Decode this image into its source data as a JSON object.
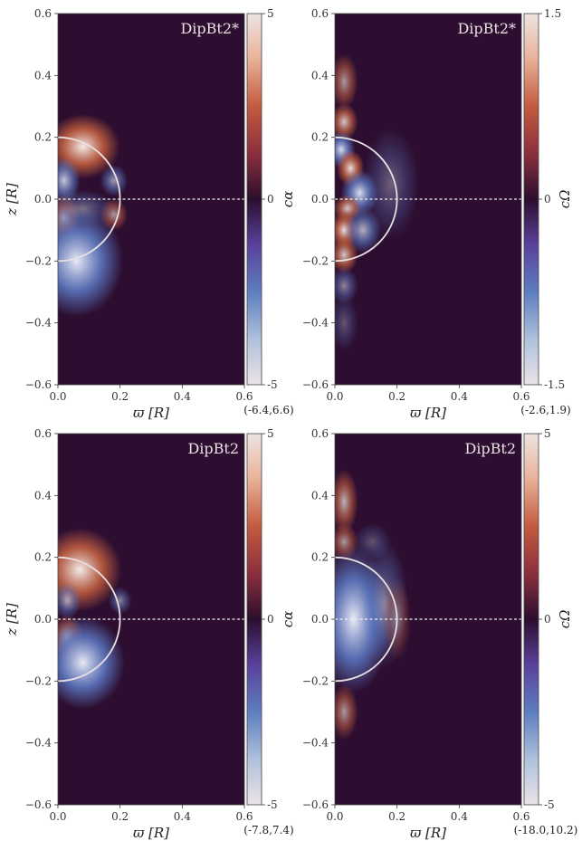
{
  "chart_data": [
    {
      "type": "heatmap",
      "title": "DipBt2*",
      "xlabel": "ϖ [R]",
      "ylabel": "z [R]",
      "colorbar_label": "cα",
      "xlim": [
        0,
        0.6
      ],
      "ylim": [
        -0.6,
        0.6
      ],
      "xticks": [
        "0.0",
        "0.2",
        "0.4",
        "0.6"
      ],
      "yticks": [
        "0.6",
        "0.4",
        "0.2",
        "0.0",
        "−0.2",
        "−0.4",
        "−0.6"
      ],
      "cbar_range": [
        -5,
        5
      ],
      "cbar_ticks": [
        "5",
        "0",
        "-5"
      ],
      "data_range": "(-6.4,6.6)",
      "blobs": [
        {
          "x": 0.08,
          "z": 0.17,
          "rx": 0.08,
          "rz": 0.07,
          "v": 1.0
        },
        {
          "x": 0.02,
          "z": 0.06,
          "rx": 0.035,
          "rz": 0.05,
          "v": -0.8
        },
        {
          "x": 0.18,
          "z": 0.06,
          "rx": 0.03,
          "rz": 0.035,
          "v": -0.6
        },
        {
          "x": 0.02,
          "z": -0.06,
          "rx": 0.035,
          "rz": 0.05,
          "v": 0.7
        },
        {
          "x": 0.18,
          "z": -0.05,
          "rx": 0.03,
          "rz": 0.035,
          "v": 0.6
        },
        {
          "x": 0.06,
          "z": -0.2,
          "rx": 0.1,
          "rz": 0.12,
          "v": -1.0
        },
        {
          "x": 0.08,
          "z": -0.03,
          "rx": 0.07,
          "rz": 0.04,
          "v": -0.4
        }
      ]
    },
    {
      "type": "heatmap",
      "title": "DipBt2*",
      "xlabel": "ϖ [R]",
      "ylabel": "",
      "colorbar_label": "cΩ",
      "xlim": [
        0,
        0.6
      ],
      "ylim": [
        -0.6,
        0.6
      ],
      "xticks": [
        "0.0",
        "0.2",
        "0.4",
        "0.6"
      ],
      "yticks": [
        "0.6",
        "0.4",
        "0.2",
        "0.0",
        "−0.2",
        "−0.4",
        "−0.6"
      ],
      "cbar_range": [
        -1.5,
        1.5
      ],
      "cbar_ticks": [
        "1.5",
        "0",
        "-1.5"
      ],
      "data_range": "(-2.6,1.9)",
      "blobs": [
        {
          "x": 0.03,
          "z": 0.38,
          "rx": 0.03,
          "rz": 0.06,
          "v": 0.6
        },
        {
          "x": 0.03,
          "z": 0.25,
          "rx": 0.03,
          "rz": 0.04,
          "v": 0.8
        },
        {
          "x": 0.02,
          "z": 0.16,
          "rx": 0.03,
          "rz": 0.04,
          "v": -0.9
        },
        {
          "x": 0.05,
          "z": 0.1,
          "rx": 0.03,
          "rz": 0.04,
          "v": 0.9
        },
        {
          "x": 0.08,
          "z": 0.02,
          "rx": 0.04,
          "rz": 0.05,
          "v": -0.9
        },
        {
          "x": 0.04,
          "z": -0.03,
          "rx": 0.03,
          "rz": 0.03,
          "v": 0.8
        },
        {
          "x": 0.03,
          "z": -0.1,
          "rx": 0.03,
          "rz": 0.04,
          "v": 0.9
        },
        {
          "x": 0.09,
          "z": -0.1,
          "rx": 0.04,
          "rz": 0.05,
          "v": -0.7
        },
        {
          "x": 0.03,
          "z": -0.18,
          "rx": 0.03,
          "rz": 0.04,
          "v": 0.8
        },
        {
          "x": 0.03,
          "z": -0.28,
          "rx": 0.03,
          "rz": 0.04,
          "v": -0.5
        },
        {
          "x": 0.18,
          "z": 0.05,
          "rx": 0.06,
          "rz": 0.12,
          "v": -0.35
        },
        {
          "x": 0.03,
          "z": -0.4,
          "rx": 0.03,
          "rz": 0.06,
          "v": -0.3
        }
      ]
    },
    {
      "type": "heatmap",
      "title": "DipBt2",
      "xlabel": "ϖ [R]",
      "ylabel": "z [R]",
      "colorbar_label": "cα",
      "xlim": [
        0,
        0.6
      ],
      "ylim": [
        -0.6,
        0.6
      ],
      "xticks": [
        "0.0",
        "0.2",
        "0.4",
        "0.6"
      ],
      "yticks": [
        "0.6",
        "0.4",
        "0.2",
        "0.0",
        "−0.2",
        "−0.4",
        "−0.6"
      ],
      "cbar_range": [
        -5,
        5
      ],
      "cbar_ticks": [
        "5",
        "0",
        "-5"
      ],
      "data_range": "(-7.8,7.4)",
      "blobs": [
        {
          "x": 0.07,
          "z": 0.16,
          "rx": 0.09,
          "rz": 0.09,
          "v": 1.0
        },
        {
          "x": 0.03,
          "z": 0.06,
          "rx": 0.03,
          "rz": 0.04,
          "v": -0.6
        },
        {
          "x": 0.2,
          "z": 0.06,
          "rx": 0.025,
          "rz": 0.03,
          "v": -0.5
        },
        {
          "x": 0.03,
          "z": -0.06,
          "rx": 0.035,
          "rz": 0.05,
          "v": 0.7
        },
        {
          "x": 0.08,
          "z": -0.14,
          "rx": 0.09,
          "rz": 0.1,
          "v": -1.0
        }
      ]
    },
    {
      "type": "heatmap",
      "title": "DipBt2",
      "xlabel": "ϖ [R]",
      "ylabel": "",
      "colorbar_label": "cΩ",
      "xlim": [
        0,
        0.6
      ],
      "ylim": [
        -0.6,
        0.6
      ],
      "xticks": [
        "0.0",
        "0.2",
        "0.4",
        "0.6"
      ],
      "yticks": [
        "0.6",
        "0.4",
        "0.2",
        "0.0",
        "−0.2",
        "−0.4",
        "−0.6"
      ],
      "cbar_range": [
        -5,
        5
      ],
      "cbar_ticks": [
        "5",
        "0",
        "-5"
      ],
      "data_range": "(-18.0,10.2)",
      "blobs": [
        {
          "x": 0.03,
          "z": 0.38,
          "rx": 0.03,
          "rz": 0.07,
          "v": 0.7
        },
        {
          "x": 0.03,
          "z": 0.25,
          "rx": 0.03,
          "rz": 0.04,
          "v": 0.6
        },
        {
          "x": 0.06,
          "z": 0.0,
          "rx": 0.08,
          "rz": 0.16,
          "v": -1.0
        },
        {
          "x": 0.16,
          "z": 0.05,
          "rx": 0.05,
          "rz": 0.14,
          "v": -0.45
        },
        {
          "x": 0.2,
          "z": 0.0,
          "rx": 0.03,
          "rz": 0.09,
          "v": 0.35
        },
        {
          "x": 0.03,
          "z": -0.3,
          "rx": 0.03,
          "rz": 0.06,
          "v": 0.6
        },
        {
          "x": 0.12,
          "z": 0.25,
          "rx": 0.04,
          "rz": 0.04,
          "v": -0.3
        }
      ]
    }
  ]
}
